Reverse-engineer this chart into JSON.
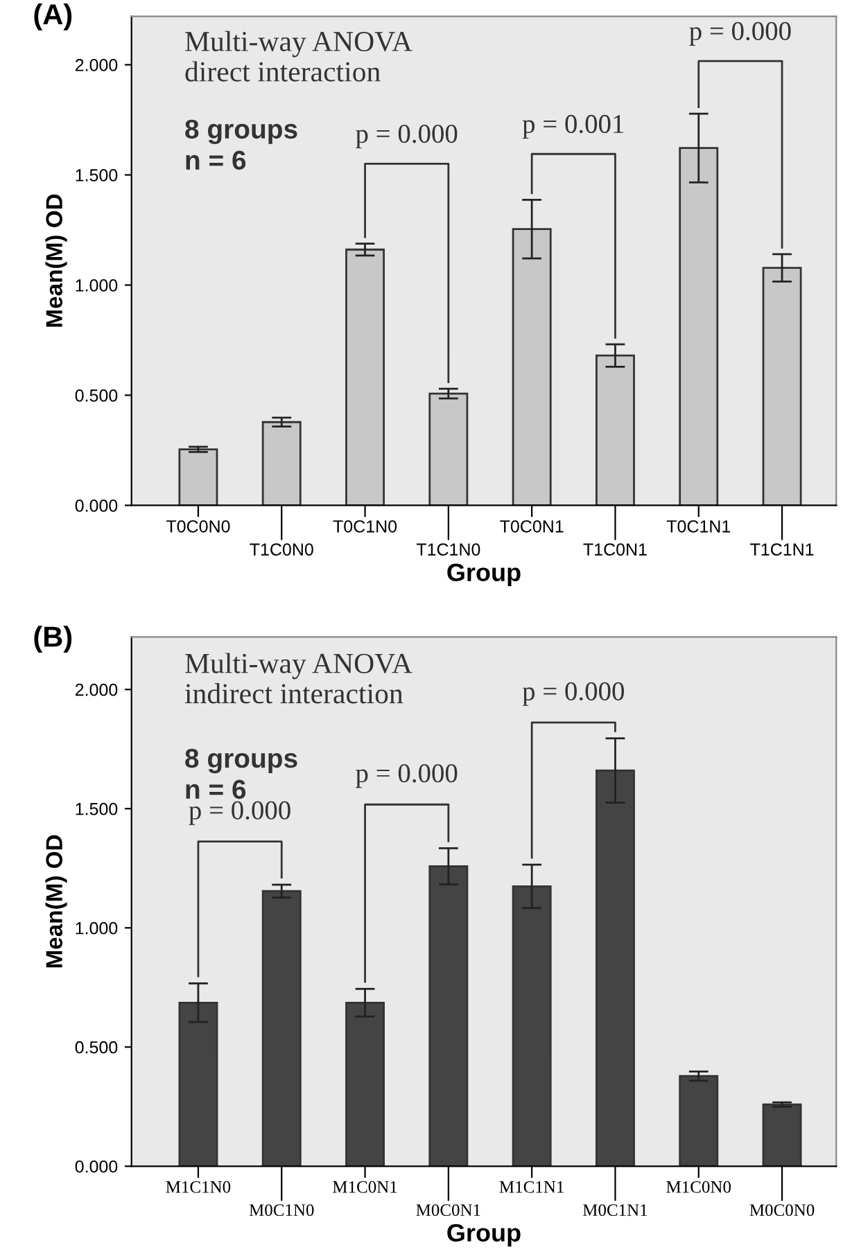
{
  "chart_data": [
    {
      "type": "bar",
      "title": "(A)",
      "xlabel": "Group",
      "ylabel": "Mean(M) OD",
      "categories": [
        "T0C0N0",
        "T1C0N0",
        "T0C1N0",
        "T1C1N0",
        "T0C0N1",
        "T1C0N1",
        "T0C1N1",
        "T1C1N1"
      ],
      "values": [
        0.254,
        0.378,
        1.161,
        0.507,
        1.254,
        0.68,
        1.622,
        1.078
      ],
      "errors": [
        0.012,
        0.02,
        0.027,
        0.022,
        0.133,
        0.051,
        0.156,
        0.062
      ],
      "color": "#c8c8c8",
      "ylim": [
        0,
        2.22
      ],
      "yticks": [
        {
          "value": 0,
          "label": "0.000"
        },
        {
          "value": 0.5,
          "label": "0.500"
        },
        {
          "value": 1,
          "label": "1.000"
        },
        {
          "value": 1.5,
          "label": "1.500"
        },
        {
          "value": 2,
          "label": "2.000"
        }
      ],
      "grid": false,
      "annotations": [
        "Multi-way ANOVA\ndirect interaction",
        "8 groups\nn = 6",
        "p = 0.000",
        "p = 0.001",
        "p = 0.000"
      ]
    },
    {
      "type": "bar",
      "title": "(B)",
      "xlabel": "Group",
      "ylabel": "Mean(M) OD",
      "categories": [
        "M1C1N0",
        "M0C1N0",
        "M1C0N1",
        "M0C0N1",
        "M1C1N1",
        "M0C1N1",
        "M1C0N0",
        "M0C0N0"
      ],
      "values": [
        0.686,
        1.154,
        0.686,
        1.258,
        1.174,
        1.66,
        0.378,
        0.259
      ],
      "errors": [
        0.081,
        0.027,
        0.058,
        0.076,
        0.091,
        0.135,
        0.019,
        0.009
      ],
      "color": "#444444",
      "ylim": [
        0,
        2.22
      ],
      "yticks": [
        {
          "value": 0,
          "label": "0.000"
        },
        {
          "value": 0.5,
          "label": "0.500"
        },
        {
          "value": 1,
          "label": "1.000"
        },
        {
          "value": 1.5,
          "label": "1.500"
        },
        {
          "value": 2,
          "label": "2.000"
        }
      ],
      "grid": false,
      "annotations": [
        "Multi-way ANOVA\nindirect interaction",
        "8 groups\nn = 6",
        "p = 0.000",
        "p = 0.000",
        "p = 0.000"
      ]
    }
  ]
}
